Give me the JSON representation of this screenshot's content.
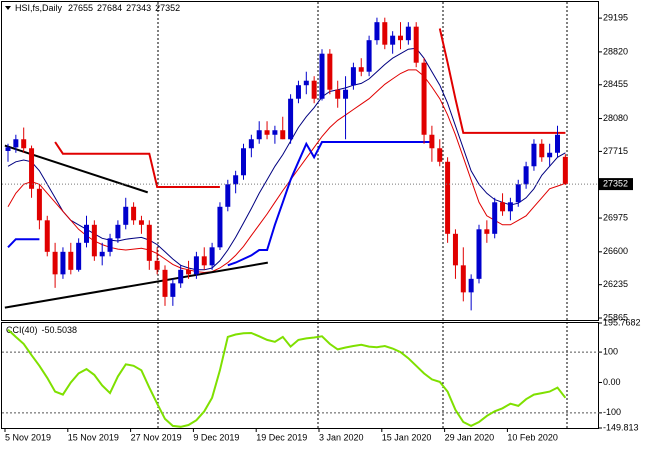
{
  "chart_data": [
    {
      "type": "candlestick",
      "symbol": "HSI,fs,Daily",
      "categories": [
        "5 Nov 2019",
        null,
        null,
        null,
        null,
        null,
        null,
        null,
        "15 Nov 2019",
        null,
        null,
        null,
        null,
        null,
        null,
        null,
        "27 Nov 2019",
        null,
        null,
        null,
        null,
        null,
        null,
        null,
        "9 Dec 2019",
        null,
        null,
        null,
        null,
        null,
        null,
        null,
        "19 Dec 2019",
        null,
        null,
        null,
        null,
        null,
        null,
        null,
        "3 Jan 2020",
        null,
        null,
        null,
        null,
        null,
        null,
        null,
        "15 Jan 2020",
        null,
        null,
        null,
        null,
        null,
        null,
        null,
        "29 Jan 2020",
        null,
        null,
        null,
        null,
        null,
        null,
        null,
        "10 Feb 2020",
        null,
        null,
        null,
        null,
        null,
        null,
        null
      ],
      "open": [
        27720,
        27760,
        27850,
        27750,
        27300,
        26950,
        26600,
        26350,
        26600,
        26400,
        26700,
        26900,
        26550,
        26600,
        26750,
        26900,
        27100,
        26950,
        26900,
        26500,
        26400,
        26100,
        26250,
        26400,
        26350,
        26550,
        26450,
        26650,
        27100,
        27350,
        27450,
        27750,
        27850,
        27950,
        27900,
        27950,
        27850,
        28300,
        28450,
        28500,
        28300,
        28800,
        28400,
        28300,
        28450,
        28650,
        28600,
        28950,
        29150,
        28900,
        29000,
        28950,
        29100,
        28700,
        27900,
        27750,
        27600,
        26800,
        26450,
        26150,
        26300,
        26850,
        26800,
        27150,
        27050,
        27150,
        27350,
        27550,
        27800,
        27650,
        27700,
        27655
      ],
      "high": [
        27800,
        27900,
        27980,
        27780,
        27350,
        27000,
        26700,
        26650,
        26700,
        26750,
        27000,
        26950,
        26700,
        26800,
        26950,
        27200,
        27150,
        27000,
        26950,
        26650,
        26450,
        26300,
        26450,
        26500,
        26600,
        26650,
        26700,
        27150,
        27400,
        27500,
        27800,
        27900,
        28050,
        28050,
        28000,
        28100,
        28350,
        28500,
        28600,
        28550,
        28850,
        28850,
        28500,
        28550,
        28700,
        28750,
        29000,
        29200,
        29200,
        29050,
        29150,
        29150,
        29150,
        28750,
        28000,
        27850,
        27650,
        26850,
        26650,
        26350,
        26900,
        26950,
        27200,
        27250,
        27200,
        27400,
        27600,
        27850,
        27850,
        27800,
        28000,
        27684
      ],
      "low": [
        27600,
        27700,
        27700,
        27200,
        26850,
        26550,
        26200,
        26300,
        26350,
        26380,
        26650,
        26500,
        26450,
        26550,
        26700,
        26850,
        26900,
        26800,
        26400,
        26350,
        26000,
        26000,
        26200,
        26300,
        26300,
        26400,
        26400,
        26620,
        27050,
        27250,
        27400,
        27650,
        27800,
        27850,
        27800,
        27850,
        27800,
        28250,
        28350,
        28250,
        28280,
        28350,
        28200,
        27850,
        28400,
        28550,
        28550,
        28900,
        28850,
        28800,
        28850,
        28900,
        28650,
        27800,
        27600,
        27550,
        26700,
        26300,
        26050,
        25950,
        26250,
        26700,
        26750,
        27000,
        26950,
        27100,
        27300,
        27500,
        27600,
        27550,
        27650,
        27343
      ],
      "close": [
        27760,
        27850,
        27750,
        27300,
        26950,
        26600,
        26350,
        26600,
        26400,
        26700,
        26900,
        26550,
        26600,
        26750,
        26900,
        27100,
        26950,
        26900,
        26500,
        26400,
        26100,
        26250,
        26400,
        26350,
        26550,
        26450,
        26650,
        27100,
        27350,
        27450,
        27750,
        27850,
        27950,
        27900,
        27950,
        27850,
        28300,
        28450,
        28500,
        28300,
        28800,
        28400,
        28300,
        28400,
        28650,
        28600,
        28950,
        29150,
        28900,
        29000,
        28950,
        29100,
        28700,
        27900,
        27750,
        27600,
        26800,
        26450,
        26150,
        26300,
        26850,
        26800,
        27150,
        27050,
        27150,
        27350,
        27550,
        27800,
        27650,
        27700,
        27900,
        27352
      ],
      "up_color": "#0000cc",
      "down_color": "#e00000",
      "lines": [
        {
          "color": "#000080",
          "values": [
            27550,
            27600,
            27620,
            27600,
            27500,
            27350,
            27200,
            27050,
            26950,
            26900,
            26850,
            26800,
            26750,
            26730,
            26720,
            26740,
            26750,
            26760,
            26730,
            26680,
            26600,
            26520,
            26450,
            26420,
            26400,
            26400,
            26420,
            26500,
            26620,
            26760,
            26920,
            27080,
            27250,
            27400,
            27550,
            27680,
            27830,
            27980,
            28100,
            28200,
            28320,
            28380,
            28400,
            28420,
            28450,
            28470,
            28520,
            28600,
            28680,
            28750,
            28800,
            28850,
            28860,
            28750,
            28600,
            28450,
            28250,
            28000,
            27750,
            27500,
            27350,
            27250,
            27180,
            27150,
            27120,
            27140,
            27200,
            27300,
            27450,
            27550,
            27650,
            27700
          ]
        },
        {
          "color": "#e00000",
          "values": [
            27100,
            27250,
            27350,
            27380,
            27350,
            27250,
            27150,
            27050,
            26950,
            26850,
            26780,
            26720,
            26680,
            26650,
            26630,
            26620,
            26630,
            26640,
            26620,
            26580,
            26520,
            26460,
            26420,
            26400,
            26380,
            26370,
            26380,
            26420,
            26480,
            26560,
            26660,
            26780,
            26900,
            27020,
            27150,
            27280,
            27400,
            27520,
            27640,
            27760,
            27880,
            27980,
            28060,
            28120,
            28180,
            28240,
            28300,
            28380,
            28460,
            28520,
            28580,
            28620,
            28620,
            28550,
            28430,
            28300,
            28120,
            27900,
            27650,
            27400,
            27150,
            27000,
            26950,
            26900,
            26900,
            26950,
            27000,
            27100,
            27200,
            27300,
            27330,
            27360
          ]
        },
        {
          "color": "#e00000",
          "width": 2,
          "values": [
            null,
            null,
            null,
            null,
            null,
            null,
            27820,
            27690,
            27690,
            27690,
            27690,
            27690,
            27690,
            27690,
            27690,
            27690,
            27690,
            27690,
            27690,
            27320,
            27320,
            27320,
            27320,
            27320,
            27320,
            27320,
            27320,
            27320,
            null,
            null,
            null,
            null,
            null,
            null,
            null,
            null,
            null,
            null,
            null,
            null,
            null,
            null,
            null,
            null,
            null,
            null,
            null,
            null,
            null,
            null,
            null,
            null,
            null,
            null,
            null,
            29080,
            28700,
            28300,
            27920,
            27920,
            27920,
            27920,
            27920,
            27920,
            27920,
            27920,
            27920,
            27920,
            27920,
            27920,
            27920,
            27920
          ]
        },
        {
          "color": "#0000ee",
          "width": 2,
          "values": [
            26650,
            26740,
            26740,
            26740,
            26740,
            null,
            null,
            null,
            null,
            null,
            null,
            null,
            null,
            null,
            null,
            null,
            null,
            null,
            null,
            null,
            null,
            null,
            null,
            null,
            null,
            null,
            null,
            null,
            26450,
            26480,
            26520,
            26560,
            26620,
            26620,
            26900,
            27150,
            27400,
            27600,
            27800,
            27650,
            27820,
            27820,
            27820,
            27820,
            27820,
            27820,
            27820,
            27820,
            27820,
            27820,
            27820,
            27820,
            27820,
            27820,
            27820,
            null,
            null,
            null,
            null,
            null,
            null,
            null,
            null,
            null,
            null,
            null,
            null,
            null,
            null,
            null,
            null,
            null
          ]
        }
      ],
      "trendlines": [
        {
          "x": [
            -0.4,
            17.8
          ],
          "y": [
            27780,
            27260
          ]
        },
        {
          "x": [
            -0.4,
            33.1
          ],
          "y": [
            25980,
            26480
          ]
        }
      ],
      "ylim": [
        25843,
        29374
      ],
      "yticks": [
        29195,
        28820,
        28455,
        28080,
        27715,
        26975,
        26600,
        26235,
        25865
      ]
    },
    {
      "type": "line",
      "title": "CCI(40)",
      "color": "#7fe000",
      "values": [
        174,
        150,
        127,
        90,
        55,
        15,
        -30,
        -40,
        0,
        30,
        44,
        25,
        -10,
        -35,
        20,
        60,
        55,
        40,
        -17,
        -70,
        -120,
        -143,
        -146,
        -140,
        -124,
        -95,
        -50,
        40,
        150,
        158,
        162,
        163,
        152,
        140,
        134,
        150,
        118,
        140,
        145,
        148,
        152,
        127,
        109,
        115,
        120,
        124,
        118,
        116,
        120,
        112,
        100,
        80,
        55,
        30,
        10,
        2,
        -30,
        -90,
        -130,
        -143,
        -130,
        -110,
        -95,
        -85,
        -70,
        -77,
        -55,
        -40,
        -35,
        -30,
        -17,
        -50.5038
      ],
      "ylim": [
        -149.813,
        195.7682
      ],
      "yticks": [
        195.7682,
        100,
        {
          "value": 0,
          "label": "0.00"
        },
        -100,
        -149.813
      ],
      "level_lines": [
        100,
        -100
      ]
    }
  ]
}
